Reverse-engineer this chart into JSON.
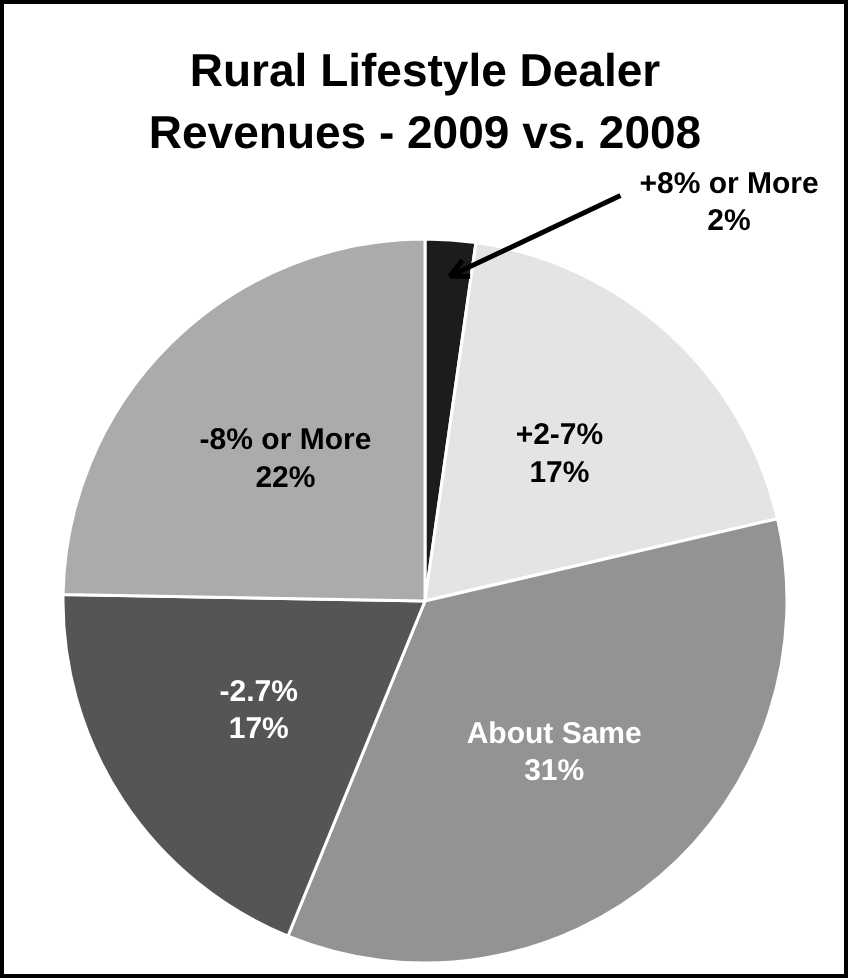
{
  "chart_data": {
    "type": "pie",
    "title": "Rural Lifestyle Dealer Revenues - 2009 vs. 2008",
    "categories": [
      "+8% or More",
      "+2-7%",
      "About Same",
      "-2.7%",
      "-8% or More"
    ],
    "values": [
      2,
      17,
      31,
      17,
      22
    ],
    "value_labels": [
      "2%",
      "17%",
      "31%",
      "17%",
      "22%"
    ],
    "colors": [
      "#1c1c1c",
      "#e4e4e4",
      "#939393",
      "#555555",
      "#ababab"
    ]
  }
}
